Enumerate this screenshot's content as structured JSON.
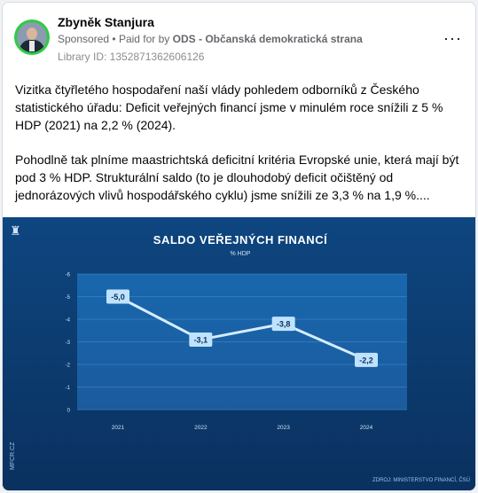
{
  "post": {
    "author": "Zbyněk Stanjura",
    "sponsored": "Sponsored",
    "dot": "•",
    "paid_for_prefix": "Paid for by",
    "paid_for_org": "ODS - Občanská demokratická strana",
    "library_id": "Library ID: 1352871362606126",
    "more_label": "···",
    "paragraph_1": "Vizitka čtyřletého hospodaření naší vlády pohledem odborníků z Českého statistického úřadu: Deficit veřejných financí jsme v minulém roce snížili z 5 % HDP (2021) na 2,2 % (2024).",
    "paragraph_2": "Pohodlně tak plníme maastrichtská deficitní kritéria Evropské unie, která mají být pod 3 % HDP. Strukturální saldo (to je dlouhodobý deficit očištěný od jednorázových vlivů hospodářského cyklu) jsme snížili ze 3,3 % na 1,9 %...."
  },
  "media": {
    "side_label": "MFCR.CZ",
    "source": "ZDROJ: MINISTERSTVO FINANCÍ, ČSÚ"
  },
  "chart_data": {
    "type": "line",
    "title": "SALDO VEŘEJNÝCH FINANCÍ",
    "subtitle": "% HDP",
    "x": [
      "2021",
      "2022",
      "2023",
      "2024"
    ],
    "series": [
      {
        "values": [
          -5.0,
          -3.1,
          -3.8,
          -2.2
        ],
        "labels": [
          "-5,0",
          "-3,1",
          "-3,8",
          "-2,2"
        ]
      }
    ],
    "yticks": [
      "-6",
      "-5",
      "-4",
      "-3",
      "-2",
      "-1",
      "0"
    ],
    "ylim": [
      0,
      -6
    ],
    "y_inverted": true,
    "grid": true,
    "colors": {
      "background": "#0c3a6e",
      "line": "#cfe9ff",
      "label_bg": "#bfe3ff"
    }
  }
}
